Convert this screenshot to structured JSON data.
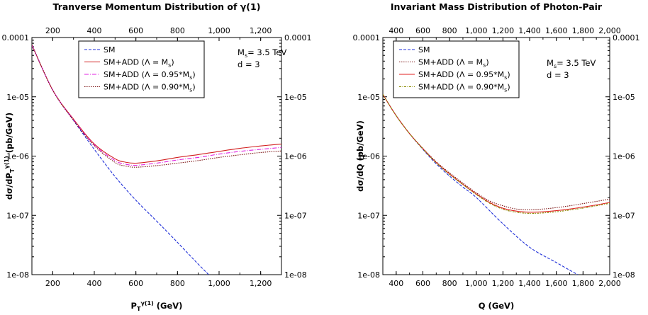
{
  "chart_data": [
    {
      "type": "line",
      "title": "Tranverse Momentum Distribution of γ(1)",
      "xlabel": "P_T^γ(1) (GeV)",
      "ylabel": "dσ/dP_T^γ(1) (pb/GeV)",
      "xlim": [
        100,
        1300
      ],
      "ylim": [
        1e-08,
        0.0001
      ],
      "yscale": "log",
      "x_ticks": [
        200,
        400,
        600,
        800,
        1000,
        1200
      ],
      "x_tick_labels": [
        "200",
        "400",
        "600",
        "800",
        "1,000",
        "1,200"
      ],
      "y_ticks": [
        1e-08,
        1e-07,
        1e-06,
        1e-05,
        0.0001
      ],
      "y_tick_labels": [
        "1e-08",
        "1e-07",
        "1e-06",
        "1e-05",
        "0.0001"
      ],
      "legend_placement": "top-left",
      "annotation": [
        "M",
        "s",
        "= 3.5 TeV",
        "d = 3"
      ],
      "series": [
        {
          "label": "SM",
          "sub": "",
          "tail": "",
          "color": "#1f2fd8",
          "dash": "4,2",
          "x": [
            100,
            200,
            300,
            400,
            500,
            600,
            700,
            800,
            900,
            950
          ],
          "y": [
            7.5e-05,
            1.3e-05,
            4e-06,
            1.3e-06,
            4.5e-07,
            1.8e-07,
            8e-08,
            3.5e-08,
            1.5e-08,
            1e-08
          ]
        },
        {
          "label": "SM+ADD (Λ = M",
          "sub": "s",
          "tail": ")",
          "color": "#d21f1f",
          "dash": "",
          "x": [
            100,
            200,
            300,
            400,
            500,
            550,
            600,
            700,
            800,
            900,
            1000,
            1100,
            1200,
            1300
          ],
          "y": [
            7.5e-05,
            1.3e-05,
            4.2e-06,
            1.6e-06,
            9e-07,
            7.9e-07,
            7.6e-07,
            8.3e-07,
            9.5e-07,
            1.06e-06,
            1.2e-06,
            1.35e-06,
            1.48e-06,
            1.6e-06
          ]
        },
        {
          "label": "SM+ADD (Λ = 0.95*M",
          "sub": "s",
          "tail": ")",
          "color": "#e020e0",
          "dash": "6,2,1,2",
          "x": [
            100,
            200,
            300,
            400,
            500,
            550,
            600,
            700,
            800,
            900,
            1000,
            1100,
            1200,
            1300
          ],
          "y": [
            7.5e-05,
            1.3e-05,
            4.1e-06,
            1.55e-06,
            8.4e-07,
            7.3e-07,
            7e-07,
            7.6e-07,
            8.6e-07,
            9.5e-07,
            1.08e-06,
            1.2e-06,
            1.3e-06,
            1.4e-06
          ]
        },
        {
          "label": "SM+ADD (Λ = 0.90*M",
          "sub": "s",
          "tail": ")",
          "color": "#7a1010",
          "dash": "1.5,1.5",
          "x": [
            100,
            200,
            300,
            400,
            500,
            550,
            600,
            700,
            800,
            900,
            1000,
            1100,
            1200,
            1300
          ],
          "y": [
            7.5e-05,
            1.3e-05,
            4e-06,
            1.5e-06,
            7.8e-07,
            6.8e-07,
            6.5e-07,
            6.9e-07,
            7.6e-07,
            8.4e-07,
            9.5e-07,
            1.05e-06,
            1.15e-06,
            1.22e-06
          ]
        }
      ]
    },
    {
      "type": "line",
      "title": "Invariant Mass Distribution of Photon-Pair",
      "xlabel": "Q (GeV)",
      "ylabel": "dσ/dQ (pb/GeV)",
      "xlim": [
        300,
        2000
      ],
      "ylim": [
        1e-08,
        0.0001
      ],
      "yscale": "log",
      "x_ticks": [
        400,
        600,
        800,
        1000,
        1200,
        1400,
        1600,
        1800,
        2000
      ],
      "x_tick_labels": [
        "400",
        "600",
        "800",
        "1,000",
        "1,200",
        "1,400",
        "1,600",
        "1,800",
        "2,000"
      ],
      "y_ticks": [
        1e-08,
        1e-07,
        1e-06,
        1e-05,
        0.0001
      ],
      "y_tick_labels": [
        "1e-08",
        "1e-07",
        "1e-06",
        "1e-05",
        "0.0001"
      ],
      "legend_placement": "top-left",
      "annotation": [
        "M",
        "s",
        "= 3.5 TeV",
        "d = 3"
      ],
      "series": [
        {
          "label": "SM",
          "sub": "",
          "tail": "",
          "color": "#1f2fd8",
          "dash": "4,2",
          "x": [
            300,
            400,
            500,
            600,
            700,
            800,
            900,
            1000,
            1200,
            1400,
            1600,
            1760
          ],
          "y": [
            1.1e-05,
            4.8e-06,
            2.4e-06,
            1.3e-06,
            7.4e-07,
            4.6e-07,
            3e-07,
            2e-07,
            7.2e-08,
            2.9e-08,
            1.6e-08,
            1e-08
          ]
        },
        {
          "label": "SM+ADD (Λ = M",
          "sub": "s",
          "tail": ")",
          "color": "#7a1010",
          "dash": "1.5,1.5",
          "x": [
            300,
            400,
            500,
            600,
            700,
            800,
            900,
            1000,
            1100,
            1200,
            1300,
            1400,
            1500,
            1600,
            1700,
            1800,
            1900,
            2000
          ],
          "y": [
            1.1e-05,
            4.8e-06,
            2.4e-06,
            1.35e-06,
            8e-07,
            5.2e-07,
            3.5e-07,
            2.4e-07,
            1.75e-07,
            1.45e-07,
            1.28e-07,
            1.24e-07,
            1.28e-07,
            1.35e-07,
            1.45e-07,
            1.58e-07,
            1.72e-07,
            1.88e-07
          ]
        },
        {
          "label": "SM+ADD (Λ = 0.95*M",
          "sub": "s",
          "tail": ")",
          "color": "#e02020",
          "dash": "",
          "x": [
            300,
            400,
            500,
            600,
            700,
            800,
            900,
            1000,
            1100,
            1200,
            1300,
            1400,
            1500,
            1600,
            1700,
            1800,
            1900,
            2000
          ],
          "y": [
            1.1e-05,
            4.8e-06,
            2.4e-06,
            1.33e-06,
            7.8e-07,
            5e-07,
            3.35e-07,
            2.3e-07,
            1.65e-07,
            1.32e-07,
            1.18e-07,
            1.13e-07,
            1.15e-07,
            1.2e-07,
            1.28e-07,
            1.38e-07,
            1.5e-07,
            1.65e-07
          ]
        },
        {
          "label": "SM+ADD (Λ = 0.90*M",
          "sub": "s",
          "tail": ")",
          "color": "#8a8a00",
          "dash": "3,1.5,1,1.5",
          "x": [
            300,
            400,
            500,
            600,
            700,
            800,
            900,
            1000,
            1100,
            1200,
            1300,
            1400,
            1500,
            1600,
            1700,
            1800,
            1900,
            2000
          ],
          "y": [
            1.1e-05,
            4.8e-06,
            2.4e-06,
            1.32e-06,
            7.7e-07,
            4.9e-07,
            3.3e-07,
            2.25e-07,
            1.6e-07,
            1.27e-07,
            1.13e-07,
            1.08e-07,
            1.1e-07,
            1.15e-07,
            1.23e-07,
            1.33e-07,
            1.45e-07,
            1.6e-07
          ]
        }
      ]
    }
  ]
}
